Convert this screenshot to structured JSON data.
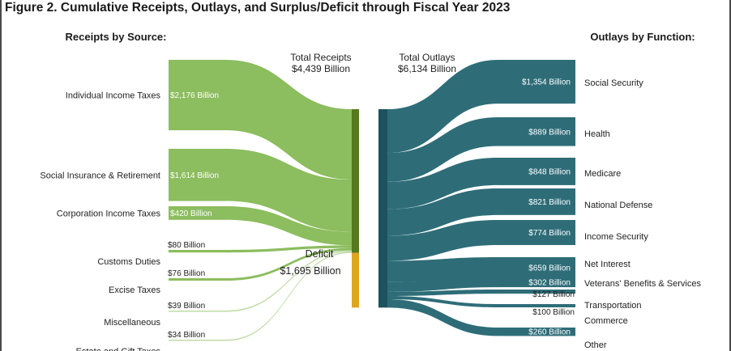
{
  "figure_title": "Figure 2. Cumulative Receipts, Outlays, and Surplus/Deficit through Fiscal Year 2023",
  "colors": {
    "receipts": "#8cbd5e",
    "receipts_bar": "#557a1c",
    "deficit": "#e0a520",
    "outlays": "#2e6d78",
    "outlays_bar": "#1d535e"
  },
  "chart_data": {
    "type": "sankey",
    "unit": "Billion",
    "receipts_header": "Receipts by Source:",
    "outlays_header": "Outlays by Function:",
    "total_receipts": {
      "label": "Total Receipts",
      "value_label": "$4,439 Billion",
      "value": 4439
    },
    "total_outlays": {
      "label": "Total Outlays",
      "value_label": "$6,134 Billion",
      "value": 6134
    },
    "deficit": {
      "label": "Deficit",
      "value_label": "$1,695 Billion",
      "value": 1695
    },
    "receipts": [
      {
        "name": "Individual Income Taxes",
        "value": 2176,
        "value_label": "$2,176 Billion"
      },
      {
        "name": "Social Insurance & Retirement",
        "value": 1614,
        "value_label": "$1,614 Billion"
      },
      {
        "name": "Corporation Income Taxes",
        "value": 420,
        "value_label": "$420 Billion"
      },
      {
        "name": "Customs Duties",
        "value": 80,
        "value_label": "$80 Billion"
      },
      {
        "name": "Excise Taxes",
        "value": 76,
        "value_label": "$76 Billion"
      },
      {
        "name": "Miscellaneous",
        "value": 39,
        "value_label": "$39 Billion"
      },
      {
        "name": "Estate and Gift Taxes",
        "value": 34,
        "value_label": "$34 Billion"
      }
    ],
    "outlays": [
      {
        "name": "Social Security",
        "value": 1354,
        "value_label": "$1,354 Billion"
      },
      {
        "name": "Health",
        "value": 889,
        "value_label": "$889 Billion"
      },
      {
        "name": "Medicare",
        "value": 848,
        "value_label": "$848 Billion"
      },
      {
        "name": "National Defense",
        "value": 821,
        "value_label": "$821 Billion"
      },
      {
        "name": "Income Security",
        "value": 774,
        "value_label": "$774 Billion"
      },
      {
        "name": "Net Interest",
        "value": 659,
        "value_label": "$659 Billion"
      },
      {
        "name": "Veterans' Benefits & Services",
        "value": 302,
        "value_label": "$302 Billion"
      },
      {
        "name": "Transportation",
        "value": 127,
        "value_label": "$127 Billion"
      },
      {
        "name": "Commerce",
        "value": 100,
        "value_label": "$100 Billion"
      },
      {
        "name": "Other",
        "value": 260,
        "value_label": "$260 Billion"
      }
    ]
  }
}
